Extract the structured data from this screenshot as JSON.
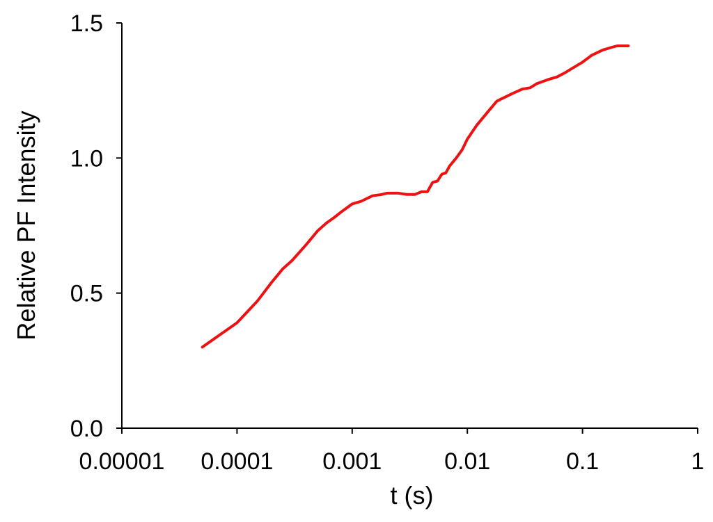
{
  "chart_data": {
    "type": "line",
    "xlabel": "t (s)",
    "ylabel": "Relative PF Intensity",
    "xscale": "log",
    "xlim": [
      1e-05,
      1
    ],
    "ylim": [
      0.0,
      1.5
    ],
    "grid": false,
    "x_ticks": [
      {
        "value": 1e-05,
        "label": "0.00001"
      },
      {
        "value": 0.0001,
        "label": "0.0001"
      },
      {
        "value": 0.001,
        "label": "0.001"
      },
      {
        "value": 0.01,
        "label": "0.01"
      },
      {
        "value": 0.1,
        "label": "0.1"
      },
      {
        "value": 1,
        "label": "1"
      }
    ],
    "y_ticks": [
      {
        "value": 0.0,
        "label": "0.0"
      },
      {
        "value": 0.5,
        "label": "0.5"
      },
      {
        "value": 1.0,
        "label": "1.0"
      },
      {
        "value": 1.5,
        "label": "1.5"
      }
    ],
    "series": [
      {
        "color": "#ee1111",
        "x": [
          5e-05,
          0.0001,
          0.00015,
          0.0002,
          0.00025,
          0.0003,
          0.0004,
          0.0005,
          0.0006,
          0.0007,
          0.0008,
          0.001,
          0.0012,
          0.0015,
          0.0018,
          0.002,
          0.0025,
          0.003,
          0.0035,
          0.004,
          0.0045,
          0.005,
          0.0055,
          0.006,
          0.0065,
          0.007,
          0.008,
          0.009,
          0.01,
          0.012,
          0.015,
          0.018,
          0.02,
          0.025,
          0.03,
          0.035,
          0.04,
          0.05,
          0.06,
          0.07,
          0.08,
          0.1,
          0.12,
          0.15,
          0.18,
          0.2,
          0.25
        ],
        "y": [
          0.3,
          0.39,
          0.47,
          0.54,
          0.59,
          0.62,
          0.68,
          0.73,
          0.76,
          0.78,
          0.8,
          0.83,
          0.84,
          0.86,
          0.865,
          0.87,
          0.87,
          0.865,
          0.865,
          0.875,
          0.875,
          0.91,
          0.915,
          0.94,
          0.945,
          0.97,
          1.0,
          1.03,
          1.07,
          1.12,
          1.17,
          1.21,
          1.22,
          1.24,
          1.255,
          1.26,
          1.275,
          1.29,
          1.3,
          1.315,
          1.33,
          1.355,
          1.38,
          1.4,
          1.41,
          1.415,
          1.415
        ]
      }
    ]
  }
}
